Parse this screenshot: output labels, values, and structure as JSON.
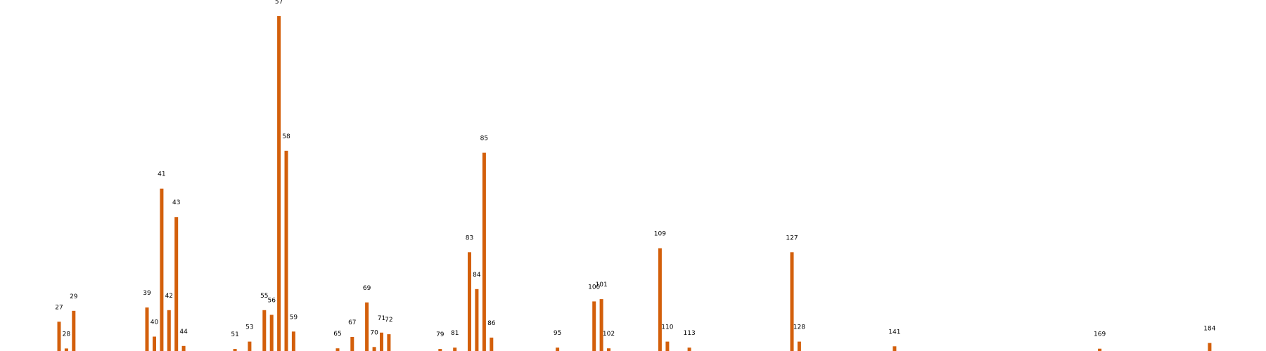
{
  "chart_data": {
    "type": "bar",
    "title": "",
    "xlabel": "",
    "ylabel": "",
    "x_domain": [
      0,
      200
    ],
    "ylim": [
      0,
      1
    ],
    "grid": false,
    "axes_visible": false,
    "bar_color": "#d35f0b",
    "points": [
      {
        "x": 27,
        "label": "27",
        "value": 0.0875
      },
      {
        "x": 28,
        "label": "28",
        "value": 0.0075
      },
      {
        "x": 29,
        "label": "29",
        "value": 0.12
      },
      {
        "x": 39,
        "label": "39",
        "value": 0.13
      },
      {
        "x": 40,
        "label": "40",
        "value": 0.043
      },
      {
        "x": 41,
        "label": "41",
        "value": 0.485
      },
      {
        "x": 42,
        "label": "42",
        "value": 0.122
      },
      {
        "x": 43,
        "label": "43",
        "value": 0.4
      },
      {
        "x": 44,
        "label": "44",
        "value": 0.015
      },
      {
        "x": 51,
        "label": "51",
        "value": 0.006
      },
      {
        "x": 53,
        "label": "53",
        "value": 0.028
      },
      {
        "x": 55,
        "label": "55",
        "value": 0.122
      },
      {
        "x": 56,
        "label": "56",
        "value": 0.108
      },
      {
        "x": 57,
        "label": "57",
        "value": 1.0
      },
      {
        "x": 58,
        "label": "58",
        "value": 0.598
      },
      {
        "x": 59,
        "label": "59",
        "value": 0.058
      },
      {
        "x": 65,
        "label": "65",
        "value": 0.008
      },
      {
        "x": 67,
        "label": "67",
        "value": 0.042
      },
      {
        "x": 69,
        "label": "69",
        "value": 0.145
      },
      {
        "x": 70,
        "label": "70",
        "value": 0.012
      },
      {
        "x": 71,
        "label": "71",
        "value": 0.055
      },
      {
        "x": 72,
        "label": "72",
        "value": 0.05
      },
      {
        "x": 79,
        "label": "79",
        "value": 0.006
      },
      {
        "x": 81,
        "label": "81",
        "value": 0.01
      },
      {
        "x": 83,
        "label": "83",
        "value": 0.295
      },
      {
        "x": 84,
        "label": "84",
        "value": 0.185
      },
      {
        "x": 85,
        "label": "85",
        "value": 0.592
      },
      {
        "x": 86,
        "label": "86",
        "value": 0.04
      },
      {
        "x": 95,
        "label": "95",
        "value": 0.01
      },
      {
        "x": 100,
        "label": "100",
        "value": 0.148
      },
      {
        "x": 101,
        "label": "101",
        "value": 0.155
      },
      {
        "x": 102,
        "label": "102",
        "value": 0.008
      },
      {
        "x": 109,
        "label": "109",
        "value": 0.307
      },
      {
        "x": 110,
        "label": "110",
        "value": 0.028
      },
      {
        "x": 113,
        "label": "113",
        "value": 0.01
      },
      {
        "x": 127,
        "label": "127",
        "value": 0.295
      },
      {
        "x": 128,
        "label": "128",
        "value": 0.028
      },
      {
        "x": 141,
        "label": "141",
        "value": 0.014
      },
      {
        "x": 169,
        "label": "169",
        "value": 0.007
      },
      {
        "x": 184,
        "label": "184",
        "value": 0.024
      }
    ]
  }
}
